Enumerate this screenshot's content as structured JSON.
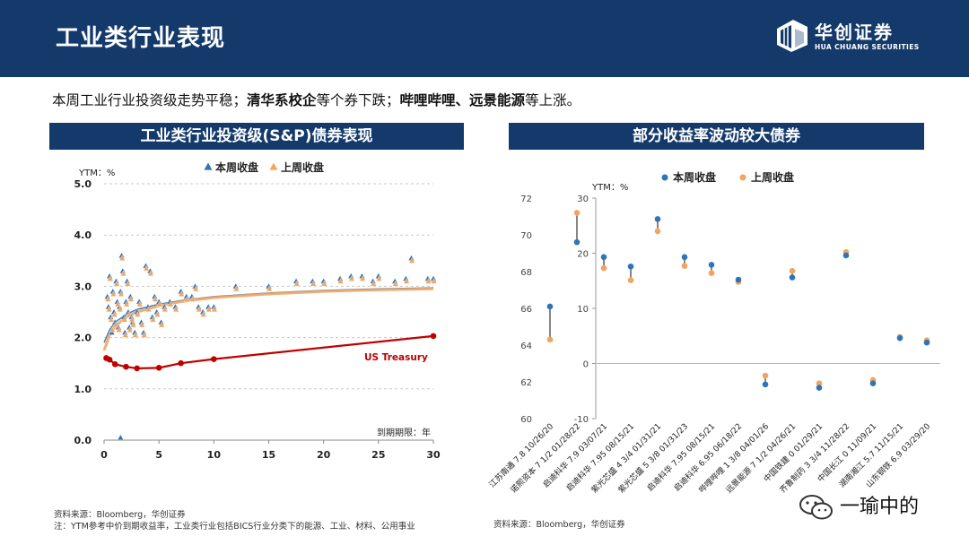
{
  "header": {
    "title": "工业类行业表现",
    "logo_cn": "华创证券",
    "logo_en": "HUA CHUANG SECURITIES"
  },
  "summary": {
    "part1": "本周工业行业投资级走势平稳；",
    "bold1": "清华系校企",
    "part2": "等个券下跌；",
    "bold2": "哔哩哔哩、远景能源",
    "part3": "等上涨。"
  },
  "left_panel": {
    "title": "工业类行业投资级(S&P)债券表现"
  },
  "right_panel": {
    "title": "部分收益率波动较大债券"
  },
  "colors": {
    "this_week": "#2e75b6",
    "last_week": "#f4a460",
    "treasury": "#c00000",
    "navy": "#143a6b"
  },
  "chart_data": [
    {
      "type": "scatter",
      "title": "工业类行业投资级(S&P)债券表现",
      "ylabel": "YTM：%",
      "xlabel": "到期期限：年",
      "xlim": [
        0,
        30
      ],
      "ylim": [
        0,
        5
      ],
      "xticks": [
        0,
        5,
        10,
        15,
        20,
        25,
        30
      ],
      "yticks": [
        0.0,
        1.0,
        2.0,
        3.0,
        4.0,
        5.0
      ],
      "ytick_labels": [
        "0.0",
        "1.0",
        "2.0",
        "3.0",
        "4.0",
        "5.0"
      ],
      "grid": true,
      "legend": [
        "本周收盘",
        "上周收盘"
      ],
      "legend_position": "top",
      "series": [
        {
          "name": "本周收盘",
          "marker": "triangle",
          "points": [
            [
              0.3,
              2.8
            ],
            [
              0.4,
              2.6
            ],
            [
              0.5,
              3.2
            ],
            [
              0.6,
              2.4
            ],
            [
              0.7,
              2.1
            ],
            [
              0.8,
              2.9
            ],
            [
              0.9,
              2.5
            ],
            [
              1.0,
              2.3
            ],
            [
              1.1,
              3.1
            ],
            [
              1.2,
              2.7
            ],
            [
              1.3,
              2.2
            ],
            [
              1.4,
              2.6
            ],
            [
              1.5,
              2.9
            ],
            [
              1.6,
              3.6
            ],
            [
              1.7,
              3.3
            ],
            [
              1.8,
              2.4
            ],
            [
              1.9,
              2.1
            ],
            [
              2.0,
              2.7
            ],
            [
              2.1,
              3.1
            ],
            [
              2.2,
              2.5
            ],
            [
              2.3,
              2.2
            ],
            [
              2.4,
              2.8
            ],
            [
              2.5,
              2.4
            ],
            [
              2.6,
              2.3
            ],
            [
              2.8,
              2.1
            ],
            [
              3.0,
              2.5
            ],
            [
              3.2,
              2.7
            ],
            [
              3.4,
              2.3
            ],
            [
              3.6,
              2.1
            ],
            [
              3.8,
              3.4
            ],
            [
              4.0,
              2.6
            ],
            [
              4.2,
              3.3
            ],
            [
              4.4,
              2.4
            ],
            [
              4.6,
              2.8
            ],
            [
              4.8,
              2.5
            ],
            [
              5.0,
              2.7
            ],
            [
              5.2,
              2.3
            ],
            [
              5.5,
              2.6
            ],
            [
              6.0,
              2.7
            ],
            [
              6.5,
              2.6
            ],
            [
              7.0,
              2.9
            ],
            [
              7.5,
              2.8
            ],
            [
              8.0,
              2.8
            ],
            [
              8.3,
              3.0
            ],
            [
              8.6,
              2.6
            ],
            [
              9.0,
              2.5
            ],
            [
              9.5,
              2.6
            ],
            [
              10.0,
              2.6
            ],
            [
              12.0,
              3.0
            ],
            [
              15.0,
              3.0
            ],
            [
              17.5,
              3.1
            ],
            [
              19.0,
              3.1
            ],
            [
              20.0,
              3.1
            ],
            [
              21.5,
              3.15
            ],
            [
              22.5,
              3.2
            ],
            [
              23.5,
              3.2
            ],
            [
              24.5,
              3.1
            ],
            [
              25.0,
              3.2
            ],
            [
              26.5,
              3.1
            ],
            [
              27.5,
              3.15
            ],
            [
              28.0,
              3.55
            ],
            [
              29.5,
              3.15
            ],
            [
              30.0,
              3.15
            ],
            [
              1.5,
              0.05
            ]
          ]
        },
        {
          "name": "上周收盘",
          "marker": "triangle",
          "points": [
            [
              0.35,
              2.75
            ],
            [
              0.45,
              2.55
            ],
            [
              0.55,
              3.15
            ],
            [
              0.65,
              2.35
            ],
            [
              0.75,
              2.15
            ],
            [
              0.85,
              2.85
            ],
            [
              0.95,
              2.45
            ],
            [
              1.05,
              2.25
            ],
            [
              1.15,
              3.05
            ],
            [
              1.25,
              2.65
            ],
            [
              1.35,
              2.15
            ],
            [
              1.45,
              2.55
            ],
            [
              1.55,
              2.85
            ],
            [
              1.65,
              3.55
            ],
            [
              1.75,
              3.25
            ],
            [
              1.85,
              2.35
            ],
            [
              1.95,
              2.05
            ],
            [
              2.05,
              2.65
            ],
            [
              2.15,
              3.05
            ],
            [
              2.25,
              2.45
            ],
            [
              2.35,
              2.15
            ],
            [
              2.45,
              2.75
            ],
            [
              2.55,
              2.35
            ],
            [
              2.65,
              2.25
            ],
            [
              2.85,
              2.05
            ],
            [
              3.05,
              2.45
            ],
            [
              3.25,
              2.65
            ],
            [
              3.45,
              2.25
            ],
            [
              3.65,
              2.05
            ],
            [
              3.85,
              3.35
            ],
            [
              4.05,
              2.55
            ],
            [
              4.25,
              3.25
            ],
            [
              4.45,
              2.35
            ],
            [
              4.65,
              2.75
            ],
            [
              4.85,
              2.45
            ],
            [
              5.05,
              2.65
            ],
            [
              5.25,
              2.25
            ],
            [
              5.55,
              2.55
            ],
            [
              6.05,
              2.65
            ],
            [
              6.55,
              2.55
            ],
            [
              7.05,
              2.85
            ],
            [
              7.55,
              2.75
            ],
            [
              8.05,
              2.75
            ],
            [
              8.35,
              2.95
            ],
            [
              8.65,
              2.55
            ],
            [
              9.05,
              2.45
            ],
            [
              9.55,
              2.55
            ],
            [
              10.05,
              2.55
            ],
            [
              12.05,
              2.95
            ],
            [
              15.05,
              2.95
            ],
            [
              17.55,
              3.05
            ],
            [
              19.05,
              3.05
            ],
            [
              20.05,
              3.05
            ],
            [
              21.55,
              3.1
            ],
            [
              22.55,
              3.15
            ],
            [
              23.55,
              3.15
            ],
            [
              24.55,
              3.05
            ],
            [
              25.05,
              3.15
            ],
            [
              26.55,
              3.05
            ],
            [
              27.55,
              3.1
            ],
            [
              28.05,
              3.5
            ],
            [
              29.55,
              3.1
            ],
            [
              30.05,
              3.1
            ]
          ]
        }
      ],
      "fit_curves": [
        {
          "name": "本周收盘 拟合",
          "points": [
            [
              0,
              1.9
            ],
            [
              0.5,
              2.15
            ],
            [
              1,
              2.3
            ],
            [
              2,
              2.45
            ],
            [
              3,
              2.55
            ],
            [
              5,
              2.65
            ],
            [
              7,
              2.72
            ],
            [
              10,
              2.8
            ],
            [
              15,
              2.87
            ],
            [
              20,
              2.92
            ],
            [
              25,
              2.95
            ],
            [
              30,
              2.97
            ]
          ]
        },
        {
          "name": "上周收盘 拟合",
          "points": [
            [
              0,
              1.75
            ],
            [
              0.5,
              2.05
            ],
            [
              1,
              2.22
            ],
            [
              2,
              2.4
            ],
            [
              3,
              2.5
            ],
            [
              5,
              2.62
            ],
            [
              7,
              2.7
            ],
            [
              10,
              2.78
            ],
            [
              15,
              2.85
            ],
            [
              20,
              2.9
            ],
            [
              25,
              2.93
            ],
            [
              30,
              2.95
            ]
          ]
        }
      ],
      "treasury": {
        "name": "US Treasury",
        "points": [
          [
            0.2,
            1.6
          ],
          [
            0.5,
            1.57
          ],
          [
            1,
            1.48
          ],
          [
            2,
            1.43
          ],
          [
            3,
            1.4
          ],
          [
            5,
            1.41
          ],
          [
            7,
            1.5
          ],
          [
            10,
            1.58
          ],
          [
            30,
            2.03
          ]
        ]
      }
    },
    {
      "type": "dumbbell",
      "title": "部分收益率波动较大债券",
      "ylabel": "YTM：%",
      "legend": [
        "本周收盘",
        "上周收盘"
      ],
      "legend_position": "top",
      "left_axis": {
        "range": [
          60,
          72
        ],
        "ticks": [
          60,
          62,
          64,
          66,
          68,
          70,
          72
        ],
        "applies_to": [
          "江苏南通 7.8 10/26/20",
          "诺熙资本 7 1/2 01/28/22"
        ]
      },
      "right_axis": {
        "range": [
          -10,
          30
        ],
        "ticks": [
          -10,
          0,
          10,
          20,
          30
        ]
      },
      "categories": [
        "江苏南通 7.8 10/26/20",
        "诺熙资本 7 1/2 01/28/22",
        "启迪科华 7.9 03/07/21",
        "启迪科华 7.95 08/15/21",
        "紫光芯盛 4 3/4 01/31/21",
        "紫光芯盛 5 3/8 01/31/23",
        "启迪科华 7.95 08/15/21",
        "启迪科华 6.95 06/18/22",
        "哔哩哔哩 1 3/8 04/01/26",
        "远景能源 7 1/2 04/26/21",
        "中国铁建 0 01/29/21",
        "齐鲁制药 3 3/4 11/28/22",
        "中国长江 0 11/09/21",
        "湖南湘江 5.7 11/15/21",
        "山东钢铁 6.9 03/29/20"
      ],
      "this_week": [
        66.1,
        69.6,
        19.3,
        17.6,
        26.2,
        19.3,
        17.9,
        15.2,
        -3.8,
        15.6,
        -4.4,
        19.6,
        -3.6,
        4.6,
        3.8
      ],
      "last_week": [
        64.3,
        71.2,
        17.3,
        15.1,
        24.0,
        17.7,
        16.4,
        14.8,
        -2.2,
        16.8,
        -3.6,
        20.2,
        -3.0,
        4.8,
        4.2
      ]
    }
  ],
  "sources": {
    "left1": "资料来源：Bloomberg，华创证券",
    "left2": "注：YTM参考中价到期收益率，工业类行业包括BICS行业分类下的能源、工业、材料、公用事业",
    "right": "资料来源：Bloomberg，华创证券"
  },
  "watermark": "一瑜中的"
}
